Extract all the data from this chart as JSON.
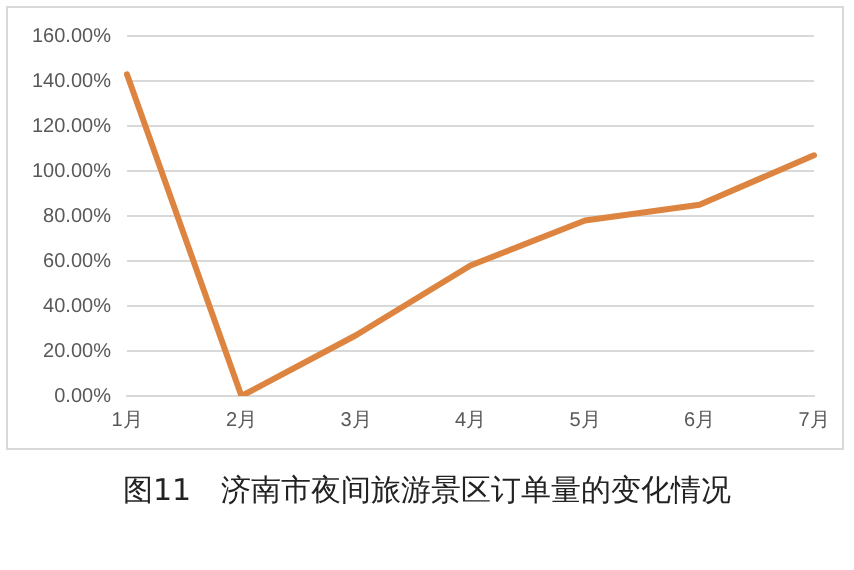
{
  "chart_data": {
    "type": "line",
    "title": "图11　济南市夜间旅游景区订单量的变化情况",
    "categories": [
      "1月",
      "2月",
      "3月",
      "4月",
      "5月",
      "6月",
      "7月"
    ],
    "series": [
      {
        "color": "#dd8540",
        "values": [
          143,
          0,
          27,
          58,
          78,
          85,
          107
        ]
      }
    ],
    "ylim": [
      0,
      160
    ],
    "yticks": [
      {
        "value": 0,
        "label": "0.00%"
      },
      {
        "value": 20,
        "label": "20.00%"
      },
      {
        "value": 40,
        "label": "40.00%"
      },
      {
        "value": 60,
        "label": "60.00%"
      },
      {
        "value": 80,
        "label": "80.00%"
      },
      {
        "value": 100,
        "label": "100.00%"
      },
      {
        "value": 120,
        "label": "120.00%"
      },
      {
        "value": 140,
        "label": "140.00%"
      },
      {
        "value": 160,
        "label": "160.00%"
      }
    ],
    "grid": "y",
    "legend": false,
    "marker": "none",
    "line_style": "solid"
  }
}
